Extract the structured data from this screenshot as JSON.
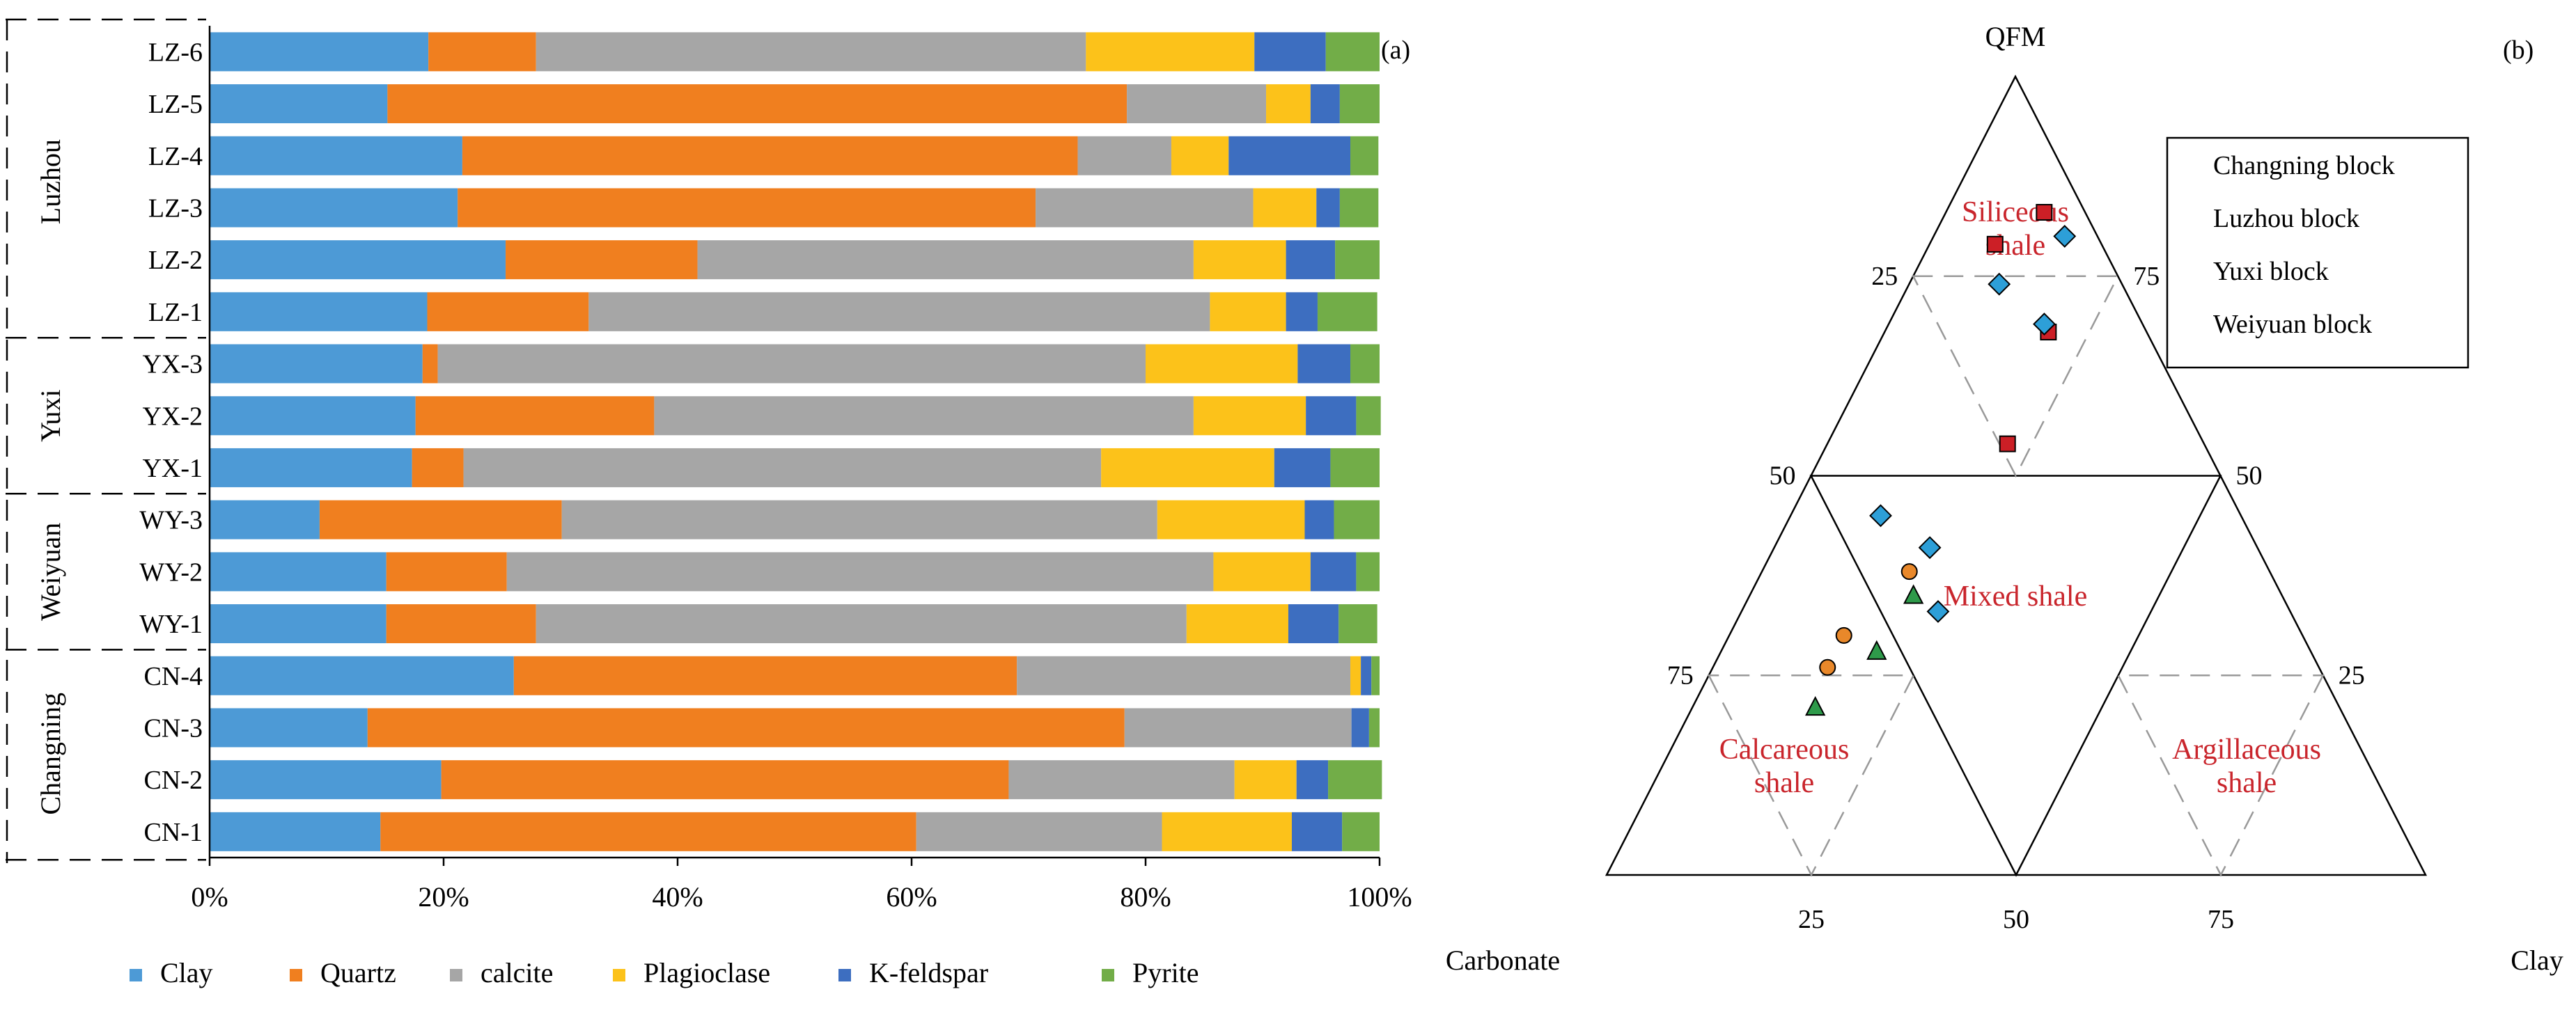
{
  "chart_data": [
    {
      "type": "stacked-bar",
      "panel_label": "(a)",
      "orientation": "horizontal",
      "xlim": [
        0,
        100
      ],
      "x_ticks": [
        "0%",
        "20%",
        "40%",
        "60%",
        "80%",
        "100%"
      ],
      "groups": [
        {
          "name": "Luzhou",
          "categories": [
            "LZ-6",
            "LZ-5",
            "LZ-4",
            "LZ-3",
            "LZ-2",
            "LZ-1"
          ]
        },
        {
          "name": "Yuxi",
          "categories": [
            "YX-3",
            "YX-2",
            "YX-1"
          ]
        },
        {
          "name": "Weiyuan",
          "categories": [
            "WY-3",
            "WY-2",
            "WY-1"
          ]
        },
        {
          "name": "Changning",
          "categories": [
            "CN-4",
            "CN-3",
            "CN-2",
            "CN-1"
          ]
        }
      ],
      "categories": [
        "LZ-6",
        "LZ-5",
        "LZ-4",
        "LZ-3",
        "LZ-2",
        "LZ-1",
        "YX-3",
        "YX-2",
        "YX-1",
        "WY-3",
        "WY-2",
        "WY-1",
        "CN-4",
        "CN-3",
        "CN-2",
        "CN-1"
      ],
      "series": [
        {
          "name": "Clay",
          "color": "#4d9ad6",
          "values": [
            18.7,
            15.2,
            21.6,
            21.2,
            25.3,
            18.6,
            18.2,
            17.6,
            17.3,
            9.4,
            15.1,
            15.1,
            26.0,
            13.5,
            19.8,
            14.6
          ]
        },
        {
          "name": "Quartz",
          "color": "#f07f1f",
          "values": [
            9.2,
            63.2,
            52.6,
            49.4,
            16.4,
            13.8,
            1.3,
            20.4,
            4.4,
            20.7,
            10.3,
            12.8,
            43.0,
            64.7,
            48.5,
            45.8
          ]
        },
        {
          "name": "calcite",
          "color": "#a6a6a6",
          "values": [
            47.0,
            11.9,
            8.0,
            18.6,
            42.4,
            53.1,
            60.5,
            46.1,
            54.5,
            50.9,
            60.4,
            55.6,
            28.5,
            19.4,
            19.3,
            21.0
          ]
        },
        {
          "name": "Plagioclase",
          "color": "#fcc21a",
          "values": [
            14.4,
            3.8,
            4.9,
            5.4,
            7.9,
            6.5,
            13.0,
            9.6,
            14.8,
            12.6,
            8.3,
            8.7,
            0.9,
            0.0,
            5.3,
            11.1
          ]
        },
        {
          "name": "K-feldspar",
          "color": "#3d6ec0",
          "values": [
            6.1,
            2.5,
            10.4,
            2.0,
            4.2,
            2.7,
            4.5,
            4.3,
            4.8,
            2.5,
            3.9,
            4.3,
            0.9,
            1.5,
            2.7,
            4.3
          ]
        },
        {
          "name": "Pyrite",
          "color": "#72ad48",
          "values": [
            4.6,
            3.4,
            2.4,
            3.3,
            3.8,
            5.1,
            2.5,
            2.1,
            4.2,
            3.9,
            2.0,
            3.3,
            0.7,
            0.9,
            4.6,
            3.2
          ]
        }
      ]
    },
    {
      "type": "ternary",
      "panel_label": "(b)",
      "apex_labels": {
        "top": "QFM",
        "left": "Carbonate",
        "right": "Clay"
      },
      "left_edge_ticks": [
        "25",
        "50",
        "75"
      ],
      "right_edge_ticks": [
        "75",
        "50",
        "25"
      ],
      "bottom_edge_ticks": [
        "25",
        "50",
        "75"
      ],
      "regions": [
        "Siliceous shale",
        "Mixed shale",
        "Calcareous shale",
        "Argillaceous shale"
      ],
      "series": [
        {
          "name": "Changning block",
          "marker": "square",
          "color": "#cc1f26",
          "points": [
            {
              "qfm": 83,
              "carb": 5,
              "clay": 12
            },
            {
              "qfm": 79,
              "carb": 13,
              "clay": 8
            },
            {
              "qfm": 68,
              "carb": 12,
              "clay": 20
            },
            {
              "qfm": 54,
              "carb": 24,
              "clay": 22
            }
          ]
        },
        {
          "name": "Luzhou block",
          "marker": "diamond",
          "color": "#2d9fd8",
          "points": [
            {
              "qfm": 80,
              "carb": 4,
              "clay": 16
            },
            {
              "qfm": 74,
              "carb": 15,
              "clay": 11
            },
            {
              "qfm": 69,
              "carb": 12,
              "clay": 19
            },
            {
              "qfm": 45,
              "carb": 44,
              "clay": 11
            },
            {
              "qfm": 41,
              "carb": 40,
              "clay": 19
            },
            {
              "qfm": 33,
              "carb": 43,
              "clay": 24
            }
          ]
        },
        {
          "name": "Yuxi block",
          "marker": "circle",
          "color": "#e9882a",
          "points": [
            {
              "qfm": 38,
              "carb": 44,
              "clay": 18
            },
            {
              "qfm": 30,
              "carb": 56,
              "clay": 14
            },
            {
              "qfm": 26,
              "carb": 60,
              "clay": 14
            }
          ]
        },
        {
          "name": "Weiyuan block",
          "marker": "triangle",
          "color": "#2e9a4a",
          "points": [
            {
              "qfm": 35,
              "carb": 45,
              "clay": 20
            },
            {
              "qfm": 28,
              "carb": 53,
              "clay": 19
            },
            {
              "qfm": 21,
              "carb": 64,
              "clay": 15
            }
          ]
        }
      ]
    }
  ]
}
